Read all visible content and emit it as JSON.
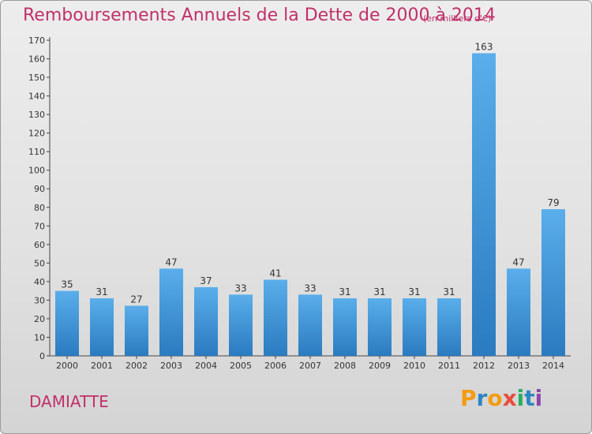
{
  "header": {
    "title": "Remboursements Annuels de la Dette de 2000 à 2014",
    "unit": "(en milliers d'€)"
  },
  "footer": {
    "commune": "DAMIATTE",
    "logo": "Proxiti"
  },
  "colors": {
    "title": "#c0306a",
    "bar_top": "#5aaeea",
    "bar_bottom": "#2a7bc0",
    "logo_letters": [
      "#f39c12",
      "#2e86c1",
      "#f39c12",
      "#e74c3c",
      "#27ae60",
      "#2e86c1",
      "#8e44ad"
    ]
  },
  "chart_data": {
    "type": "bar",
    "title": "Remboursements Annuels de la Dette de 2000 à 2014",
    "xlabel": "",
    "ylabel": "",
    "categories": [
      "2000",
      "2001",
      "2002",
      "2003",
      "2004",
      "2005",
      "2006",
      "2007",
      "2008",
      "2009",
      "2010",
      "2011",
      "2012",
      "2013",
      "2014"
    ],
    "values": [
      35,
      31,
      27,
      47,
      37,
      33,
      41,
      33,
      31,
      31,
      31,
      31,
      163,
      47,
      79
    ],
    "ylim": [
      0,
      170
    ],
    "yticks": [
      0,
      10,
      20,
      30,
      40,
      50,
      60,
      70,
      80,
      90,
      100,
      110,
      120,
      130,
      140,
      150,
      160,
      170
    ],
    "grid": false,
    "legend": "none"
  }
}
